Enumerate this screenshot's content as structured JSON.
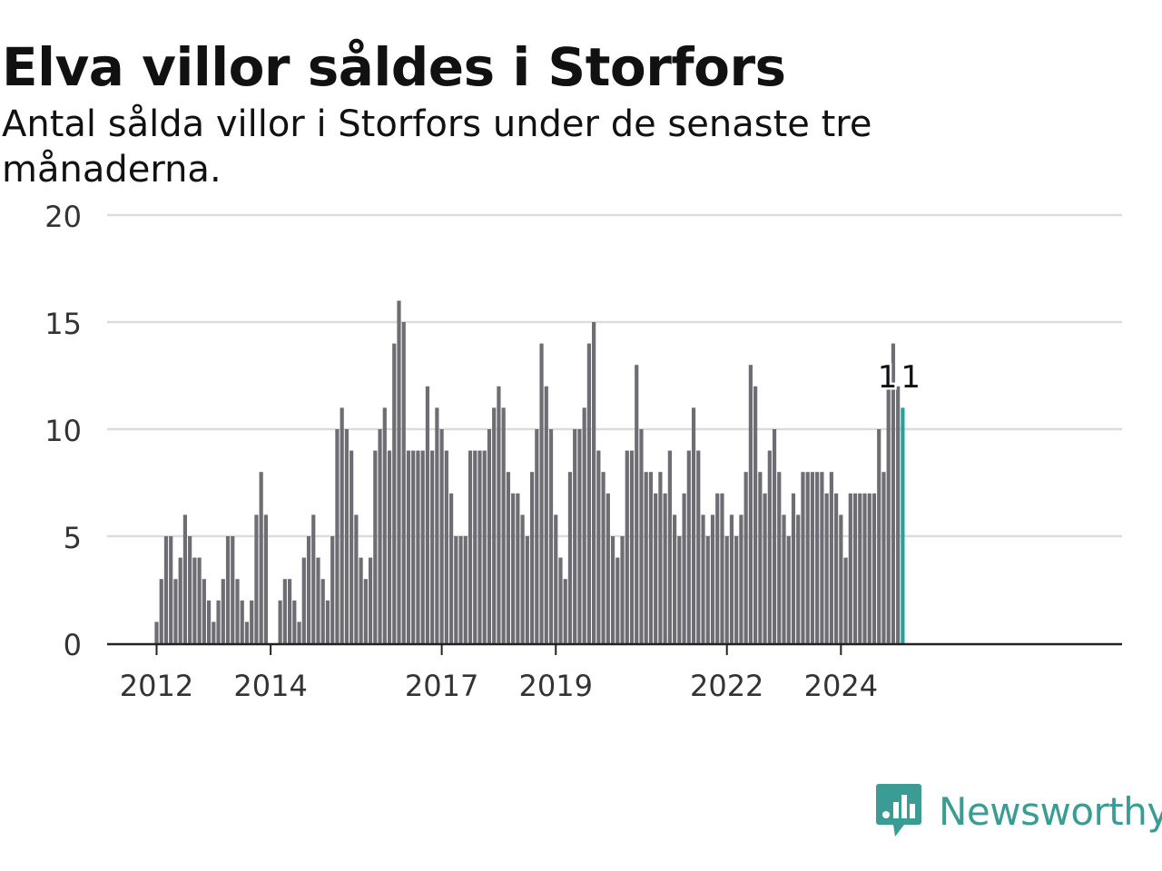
{
  "title": "Elva villor såldes i Storfors",
  "subtitle": "Antal sålda villor i Storfors under de senaste tre månaderna.",
  "brand": {
    "name": "Newsworthy",
    "icon": "newsworthy-logo-icon",
    "color": "#3a9c93"
  },
  "chart_data": {
    "type": "bar",
    "title": "Elva villor såldes i Storfors",
    "subtitle": "Antal sålda villor i Storfors under de senaste tre månaderna.",
    "xlabel": "",
    "ylabel": "",
    "ylim": [
      0,
      20
    ],
    "yticks": [
      0,
      5,
      10,
      15,
      20
    ],
    "xtick_labels": [
      "2012",
      "2014",
      "2017",
      "2019",
      "2022",
      "2024"
    ],
    "grid": true,
    "bar_color": "#6e6d73",
    "highlight_color": "#2aa097",
    "highlight_label": "11",
    "start": "2012-01",
    "values": [
      1,
      3,
      5,
      5,
      3,
      4,
      6,
      5,
      4,
      4,
      3,
      2,
      1,
      2,
      3,
      5,
      5,
      3,
      2,
      1,
      2,
      6,
      8,
      6,
      0,
      0,
      2,
      3,
      3,
      2,
      1,
      4,
      5,
      6,
      4,
      3,
      2,
      5,
      10,
      11,
      10,
      9,
      6,
      4,
      3,
      4,
      9,
      10,
      11,
      9,
      14,
      16,
      15,
      9,
      9,
      9,
      9,
      12,
      9,
      11,
      10,
      9,
      7,
      5,
      5,
      5,
      9,
      9,
      9,
      9,
      10,
      11,
      12,
      11,
      8,
      7,
      7,
      6,
      5,
      8,
      10,
      14,
      12,
      10,
      6,
      4,
      3,
      8,
      10,
      10,
      11,
      14,
      15,
      9,
      8,
      7,
      5,
      4,
      5,
      9,
      9,
      13,
      10,
      8,
      8,
      7,
      8,
      7,
      9,
      6,
      5,
      7,
      9,
      11,
      9,
      6,
      5,
      6,
      7,
      7,
      5,
      6,
      5,
      6,
      8,
      13,
      12,
      8,
      7,
      9,
      10,
      8,
      6,
      5,
      7,
      6,
      8,
      8,
      8,
      8,
      8,
      7,
      8,
      7,
      6,
      4,
      7,
      7,
      7,
      7,
      7,
      7,
      10,
      8,
      12,
      14,
      12,
      11
    ]
  }
}
